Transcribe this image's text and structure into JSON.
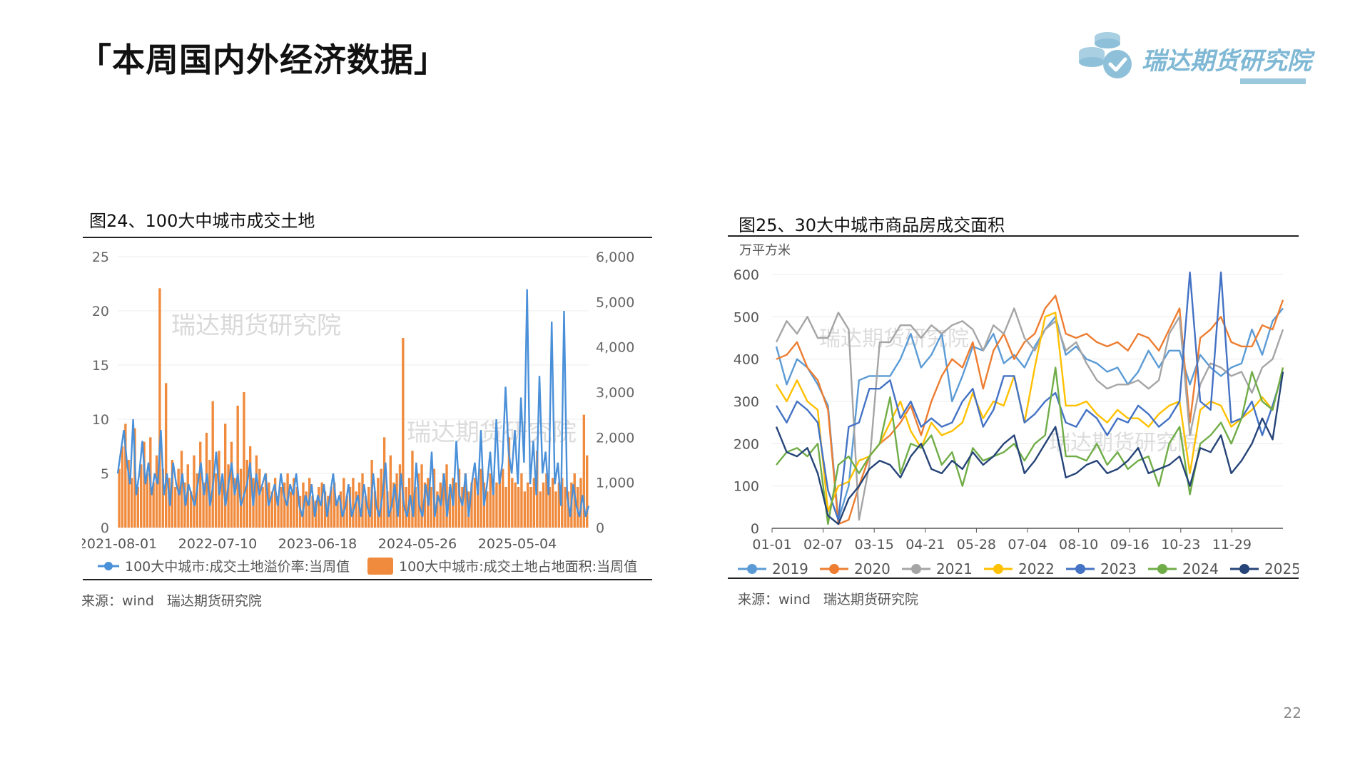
{
  "page": {
    "title": "「本周国内外经济数据」",
    "logo_text": "瑞达期货研究院",
    "page_number": "22"
  },
  "left_panel": {
    "title": "图24、100大中城市成交土地",
    "source": [
      "来源：wind",
      "瑞达期货研究院"
    ],
    "watermark": "瑞达期货研究院"
  },
  "right_panel": {
    "title": "图25、30大中城市商品房成交面积",
    "source": [
      "来源：wind",
      "瑞达期货研究院"
    ],
    "watermark": "瑞达期货研究院"
  },
  "chart_data": [
    {
      "type": "bar+line",
      "title": "",
      "x_tick_labels": [
        "2021-08-01",
        "2022-07-10",
        "2023-06-18",
        "2024-05-26",
        "2025-05-04"
      ],
      "y_left": {
        "ticks": [
          0,
          5,
          10,
          15,
          20,
          25
        ],
        "ylim": [
          0,
          25
        ]
      },
      "y_right": {
        "tick_labels": [
          "0",
          "1,000",
          "2,000",
          "3,000",
          "4,000",
          "5,000",
          "6,000"
        ],
        "ylim": [
          0,
          6000
        ]
      },
      "grid": true,
      "legend_position": "bottom",
      "series": [
        {
          "name": "100大中城市:成交土地溢价率:当周值",
          "type": "line",
          "axis": "left",
          "color": "#4a90d9",
          "values": [
            5,
            7,
            9,
            6,
            4,
            10,
            3,
            5,
            8,
            4,
            6,
            3,
            5,
            4,
            9,
            3,
            5,
            2,
            6,
            4,
            3,
            5,
            2,
            4,
            3,
            2,
            4,
            6,
            3,
            5,
            2,
            4,
            7,
            3,
            5,
            2,
            4,
            6,
            3,
            5,
            2,
            3,
            4,
            6,
            2,
            5,
            3,
            4,
            5,
            2,
            3,
            4,
            2,
            5,
            3,
            2,
            4,
            3,
            5,
            2,
            1,
            3,
            2,
            4,
            1,
            3,
            2,
            4,
            1,
            3,
            5,
            2,
            3,
            1,
            2,
            4,
            1,
            2,
            3,
            1,
            4,
            2,
            1,
            5,
            2,
            1,
            3,
            6,
            1,
            2,
            4,
            1,
            5,
            2,
            1,
            3,
            1,
            6,
            2,
            1,
            4,
            2,
            7,
            1,
            3,
            2,
            5,
            1,
            4,
            2,
            8,
            3,
            2,
            5,
            1,
            4,
            6,
            3,
            9,
            2,
            4,
            7,
            3,
            10,
            4,
            6,
            13,
            7,
            5,
            9,
            4,
            12,
            6,
            22,
            4,
            8,
            3,
            14,
            5,
            7,
            3,
            19,
            4,
            6,
            2,
            20,
            3,
            1,
            4,
            2,
            1,
            3,
            1,
            2
          ]
        },
        {
          "name": "100大中城市:成交土地占地面积:当周值",
          "type": "bar",
          "axis": "right",
          "color": "#f08a3c",
          "values": [
            1300,
            1800,
            2300,
            1500,
            1100,
            2200,
            900,
            1400,
            1900,
            1200,
            2000,
            1000,
            1600,
            5300,
            1300,
            3200,
            1100,
            1500,
            900,
            1300,
            1700,
            1000,
            1400,
            800,
            1600,
            1200,
            1900,
            1000,
            2100,
            1500,
            2800,
            1200,
            1700,
            1000,
            2300,
            1400,
            1900,
            1100,
            2700,
            1300,
            3000,
            1500,
            1800,
            1100,
            1600,
            1300,
            900,
            1200,
            1000,
            800,
            1100,
            700,
            900,
            1000,
            1200,
            800,
            1100,
            900,
            700,
            1000,
            800,
            1100,
            700,
            600,
            900,
            1000,
            800,
            700,
            900,
            1000,
            600,
            800,
            1100,
            700,
            900,
            1100,
            800,
            1000,
            1200,
            700,
            900,
            1500,
            800,
            1100,
            1300,
            2000,
            800,
            1600,
            1000,
            1200,
            1400,
            4200,
            900,
            1100,
            1700,
            900,
            1200,
            1400,
            1000,
            1100,
            900,
            1300,
            800,
            1000,
            1200,
            1400,
            900,
            1100,
            1000,
            1300,
            900,
            1200,
            800,
            1000,
            1100,
            900,
            1300,
            1000,
            800,
            1200,
            900,
            1000,
            1100,
            1300,
            900,
            2000,
            1100,
            1000,
            900,
            1200,
            800,
            1000,
            900,
            1100,
            1700,
            800,
            1000,
            1200,
            900,
            1100,
            800,
            1000,
            1100,
            900,
            800,
            1000,
            1200,
            900,
            1100,
            2500,
            1600
          ]
        }
      ]
    },
    {
      "type": "line",
      "title": "",
      "ylabel": "万平方米",
      "x_tick_labels": [
        "01-01",
        "02-07",
        "03-15",
        "04-21",
        "05-28",
        "07-04",
        "08-10",
        "09-16",
        "10-23",
        "11-29"
      ],
      "ylim": [
        0,
        600
      ],
      "y_ticks": [
        0,
        100,
        200,
        300,
        400,
        500,
        600
      ],
      "grid": true,
      "legend_position": "bottom",
      "series": [
        {
          "name": "2019",
          "color": "#5b9bd5",
          "values": [
            430,
            340,
            400,
            380,
            340,
            290,
            20,
            100,
            350,
            360,
            360,
            360,
            400,
            460,
            380,
            410,
            460,
            300,
            360,
            430,
            420,
            460,
            390,
            410,
            380,
            430,
            470,
            500,
            410,
            430,
            400,
            390,
            370,
            380,
            340,
            370,
            420,
            380,
            420,
            420,
            340,
            410,
            380,
            360,
            380,
            390,
            470,
            410,
            490,
            520
          ]
        },
        {
          "name": "2020",
          "color": "#ed7d31",
          "values": [
            400,
            410,
            440,
            380,
            350,
            280,
            10,
            20,
            100,
            170,
            200,
            220,
            250,
            290,
            220,
            300,
            360,
            400,
            380,
            440,
            330,
            420,
            460,
            400,
            440,
            460,
            520,
            550,
            460,
            450,
            460,
            440,
            430,
            440,
            420,
            460,
            450,
            420,
            470,
            520,
            250,
            450,
            470,
            500,
            440,
            430,
            430,
            480,
            470,
            540
          ]
        },
        {
          "name": "2021",
          "color": "#a5a5a5",
          "values": [
            440,
            490,
            460,
            500,
            450,
            450,
            510,
            470,
            20,
            150,
            440,
            440,
            480,
            480,
            450,
            480,
            460,
            480,
            490,
            470,
            420,
            480,
            460,
            520,
            450,
            420,
            470,
            490,
            420,
            440,
            390,
            350,
            330,
            340,
            340,
            350,
            330,
            350,
            460,
            500,
            220,
            340,
            390,
            380,
            360,
            370,
            320,
            380,
            400,
            470
          ]
        },
        {
          "name": "2022",
          "color": "#ffc000",
          "values": [
            340,
            300,
            350,
            300,
            280,
            40,
            100,
            110,
            160,
            170,
            200,
            250,
            300,
            230,
            190,
            250,
            220,
            230,
            250,
            320,
            260,
            300,
            290,
            360,
            250,
            380,
            500,
            510,
            290,
            290,
            300,
            270,
            250,
            280,
            260,
            260,
            240,
            270,
            290,
            300,
            130,
            280,
            300,
            290,
            240,
            260,
            280,
            310,
            280,
            380
          ]
        },
        {
          "name": "2023",
          "color": "#4472c4",
          "values": [
            290,
            250,
            300,
            280,
            250,
            90,
            20,
            240,
            250,
            330,
            330,
            350,
            260,
            300,
            240,
            260,
            240,
            250,
            300,
            330,
            240,
            280,
            360,
            360,
            250,
            270,
            300,
            320,
            250,
            240,
            280,
            260,
            220,
            260,
            250,
            290,
            270,
            240,
            260,
            300,
            610,
            300,
            280,
            610,
            250,
            260,
            300,
            220,
            290,
            370
          ]
        },
        {
          "name": "2024",
          "color": "#70ad47",
          "values": [
            150,
            180,
            190,
            170,
            200,
            10,
            150,
            170,
            130,
            170,
            200,
            310,
            130,
            200,
            190,
            220,
            150,
            180,
            100,
            190,
            160,
            170,
            180,
            200,
            160,
            200,
            220,
            380,
            170,
            170,
            160,
            200,
            150,
            180,
            140,
            160,
            170,
            100,
            200,
            240,
            80,
            200,
            220,
            250,
            200,
            260,
            370,
            300,
            280,
            380
          ]
        },
        {
          "name": "2025",
          "color": "#264478",
          "values": [
            240,
            180,
            170,
            190,
            130,
            30,
            10,
            70,
            100,
            140,
            160,
            150,
            120,
            170,
            200,
            140,
            130,
            160,
            140,
            180,
            150,
            170,
            200,
            220,
            130,
            160,
            200,
            240,
            120,
            130,
            150,
            160,
            130,
            140,
            160,
            190,
            130,
            140,
            150,
            170,
            100,
            190,
            180,
            220,
            130,
            160,
            200,
            260,
            210,
            370
          ]
        }
      ]
    }
  ]
}
